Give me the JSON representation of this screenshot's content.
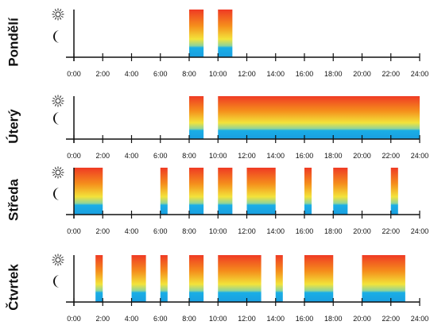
{
  "ticks": [
    {
      "value": 0,
      "label": "0:00"
    },
    {
      "value": 2,
      "label": "2:00"
    },
    {
      "value": 4,
      "label": "4:00"
    },
    {
      "value": 6,
      "label": "6:00"
    },
    {
      "value": 8,
      "label": "8:00"
    },
    {
      "value": 10,
      "label": "10:00"
    },
    {
      "value": 12,
      "label": "12:00"
    },
    {
      "value": 14,
      "label": "14:00"
    },
    {
      "value": 16,
      "label": "16:00"
    },
    {
      "value": 18,
      "label": "18:00"
    },
    {
      "value": 20,
      "label": "20:00"
    },
    {
      "value": 22,
      "label": "22:00"
    },
    {
      "value": 24,
      "label": "24:00"
    }
  ],
  "days": [
    {
      "name": "Pondělí",
      "intervals": [
        [
          8,
          9
        ],
        [
          10,
          11
        ]
      ]
    },
    {
      "name": "Úterý",
      "intervals": [
        [
          8,
          9
        ],
        [
          10,
          24
        ]
      ]
    },
    {
      "name": "Středa",
      "intervals": [
        [
          0,
          2
        ],
        [
          6,
          6.5
        ],
        [
          8,
          9
        ],
        [
          10,
          11
        ],
        [
          12,
          14
        ],
        [
          16,
          16.5
        ],
        [
          18,
          19
        ],
        [
          22,
          22.5
        ]
      ]
    },
    {
      "name": "Čtvrtek",
      "intervals": [
        [
          1.5,
          2
        ],
        [
          4,
          5
        ],
        [
          6,
          6.5
        ],
        [
          8,
          9
        ],
        [
          10,
          13
        ],
        [
          14,
          14.5
        ],
        [
          16,
          18
        ],
        [
          20,
          23
        ]
      ]
    }
  ]
}
